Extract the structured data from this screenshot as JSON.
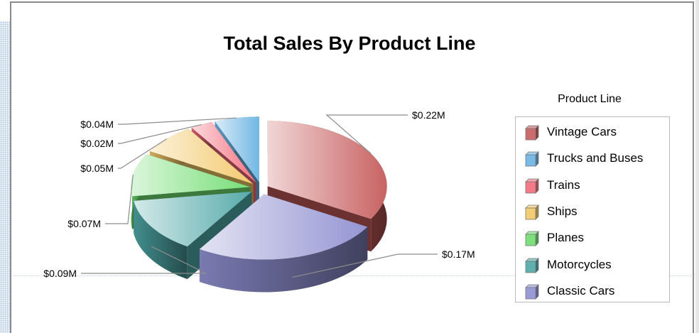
{
  "chart_data": {
    "type": "pie",
    "title": "Total Sales By Product Line",
    "legend_title": "Product Line",
    "legend_position": "right",
    "slices": [
      {
        "name": "Vintage Cars",
        "value": 0.22,
        "label": "$0.22M",
        "color": "#c55a5a"
      },
      {
        "name": "Classic Cars",
        "value": 0.17,
        "label": "$0.17M",
        "color": "#8f8fd1"
      },
      {
        "name": "Motorcycles",
        "value": 0.09,
        "label": "$0.09M",
        "color": "#4fa7a7"
      },
      {
        "name": "Planes",
        "value": 0.07,
        "label": "$0.07M",
        "color": "#6fdc6f"
      },
      {
        "name": "Ships",
        "value": 0.05,
        "label": "$0.05M",
        "color": "#f2c766"
      },
      {
        "name": "Trains",
        "value": 0.02,
        "label": "$0.02M",
        "color": "#f26b7a"
      },
      {
        "name": "Trucks and Buses",
        "value": 0.04,
        "label": "$0.04M",
        "color": "#69b3e3"
      }
    ],
    "legend_order": [
      "Vintage Cars",
      "Trucks and Buses",
      "Trains",
      "Ships",
      "Planes",
      "Motorcycles",
      "Classic Cars"
    ]
  }
}
